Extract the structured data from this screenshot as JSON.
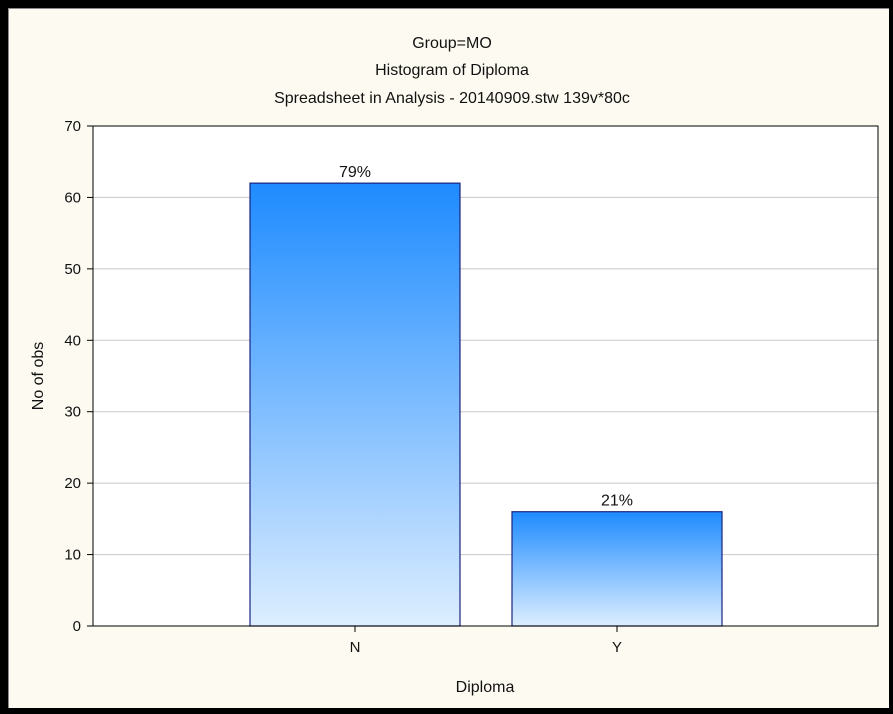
{
  "chart_data": {
    "type": "bar",
    "title_lines": [
      "Group=MO",
      "Histogram of Diploma",
      "Spreadsheet in Analysis - 20140909.stw 139v*80c"
    ],
    "xlabel": "Diploma",
    "ylabel": "No of obs",
    "categories": [
      "N",
      "Y"
    ],
    "values": [
      62,
      16
    ],
    "data_labels": [
      "79%",
      "21%"
    ],
    "ylim": [
      0,
      70
    ],
    "yticks": [
      0,
      10,
      20,
      30,
      40,
      50,
      60,
      70
    ],
    "grid": true,
    "colors": {
      "bar_top": "#1e8bff",
      "bar_bottom": "#ddeeff",
      "bar_border": "#1a237e",
      "plot_bg": "#ffffff",
      "frame_bg": "#fdfbf1",
      "grid": "#c8c8c8"
    }
  }
}
